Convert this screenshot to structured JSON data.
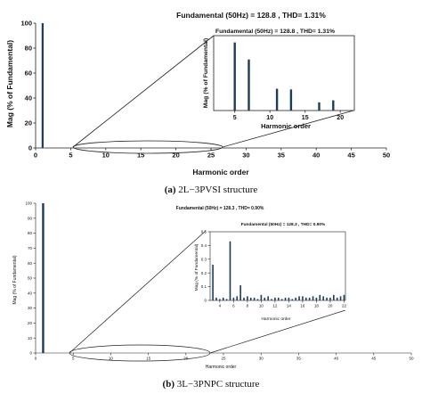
{
  "chart_data": [
    {
      "type": "bar",
      "title": "Fundamental (50Hz) = 128.8 , THD= 1.31%",
      "xlabel": "Harmonic order",
      "ylabel": "Mag (% of Fundamental)",
      "xlim": [
        0,
        50
      ],
      "ylim": [
        0,
        100
      ],
      "xticks": [
        "0",
        "5",
        "10",
        "15",
        "20",
        "25",
        "30",
        "35",
        "40",
        "45",
        "50"
      ],
      "yticks": [
        "0",
        "20",
        "40",
        "60",
        "80",
        "100"
      ],
      "x": [
        1
      ],
      "values": [
        100
      ],
      "inset": {
        "title": "Fundamental (50Hz) = 128.8 , THD= 1.31%",
        "xlabel": "Harmonic order",
        "ylabel": "Mag (% of Fundamental)",
        "xlim": [
          2,
          22
        ],
        "ylim": [
          0,
          1.1
        ],
        "xticks": [
          "5",
          "10",
          "15",
          "20"
        ],
        "x": [
          5,
          7,
          11,
          13,
          17,
          19
        ],
        "values": [
          1.0,
          0.75,
          0.32,
          0.31,
          0.12,
          0.15
        ]
      },
      "caption_label": "(a)",
      "caption": "2L−3PVSI structure"
    },
    {
      "type": "bar",
      "title": "Fundamental (50Hz) = 128.3 , THD= 0.90%",
      "xlabel": "Harmonic order",
      "ylabel": "Mag (% of Fundamental)",
      "xlim": [
        0,
        50
      ],
      "ylim": [
        0,
        100
      ],
      "xticks": [
        "0",
        "5",
        "10",
        "15",
        "20",
        "25",
        "30",
        "35",
        "40",
        "45",
        "50"
      ],
      "yticks": [
        "0",
        "10",
        "20",
        "30",
        "40",
        "50",
        "60",
        "70",
        "80",
        "90",
        "100"
      ],
      "x": [
        1
      ],
      "values": [
        100
      ],
      "inset": {
        "title": "Fundamental (50Hz) = 128.3 , THD= 0.90%",
        "xlabel": "Harmonic order",
        "ylabel": "Mag (% of Fundamental)",
        "xlim": [
          2.6,
          22.2
        ],
        "ylim": [
          0,
          0.5
        ],
        "xticks": [
          "4",
          "6",
          "8",
          "10",
          "12",
          "14",
          "16",
          "18",
          "20",
          "22"
        ],
        "yticks": [
          "0",
          "0.1",
          "0.2",
          "0.3",
          "0.4",
          "0.5"
        ],
        "x": [
          3,
          3.5,
          4,
          4.5,
          5,
          5.5,
          6,
          6.5,
          7,
          7.5,
          8,
          8.5,
          9,
          9.5,
          10,
          10.5,
          11,
          11.5,
          12,
          12.5,
          13,
          13.5,
          14,
          14.5,
          15,
          15.5,
          16,
          16.5,
          17,
          17.5,
          18,
          18.5,
          19,
          19.5,
          20,
          20.5,
          21,
          21.5,
          22
        ],
        "values": [
          0.26,
          0.02,
          0.01,
          0.02,
          0.01,
          0.43,
          0.02,
          0.03,
          0.11,
          0.02,
          0.03,
          0.02,
          0.02,
          0.01,
          0.04,
          0.02,
          0.03,
          0.01,
          0.02,
          0.02,
          0.01,
          0.02,
          0.02,
          0.01,
          0.02,
          0.03,
          0.03,
          0.02,
          0.02,
          0.03,
          0.02,
          0.04,
          0.03,
          0.02,
          0.02,
          0.04,
          0.02,
          0.03,
          0.04
        ]
      },
      "caption_label": "(b)",
      "caption": "3L−3PNPC structure"
    }
  ]
}
